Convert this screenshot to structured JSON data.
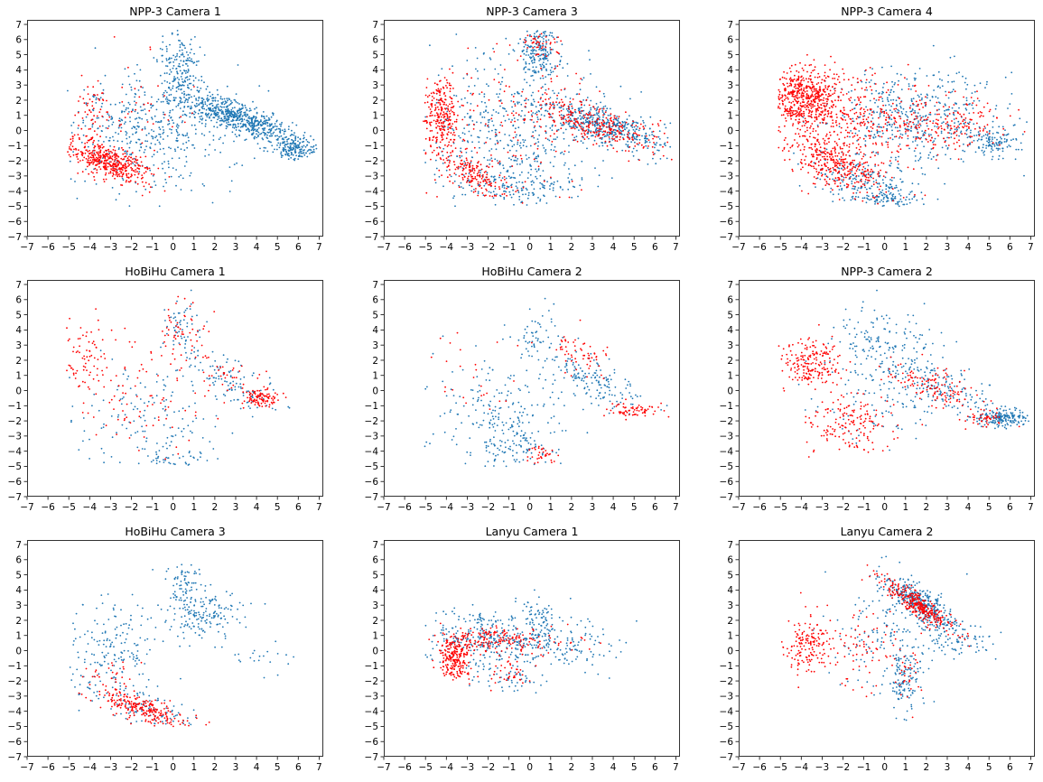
{
  "chart_data": [
    {
      "type": "scatter",
      "title": "NPP-3 Camera 1",
      "xlim": [
        -7,
        7.2
      ],
      "ylim": [
        -7,
        7.3
      ],
      "series": [
        {
          "color": "#1f77b4",
          "clusters": [
            {
              "cx": 3.2,
              "cy": 0.8,
              "sx": 1.6,
              "sy": 0.45,
              "rot": -27,
              "n": 650
            },
            {
              "cx": 5.8,
              "cy": -1.2,
              "sx": 0.55,
              "sy": 0.3,
              "rot": 0,
              "n": 160
            },
            {
              "cx": 0.3,
              "cy": 4.2,
              "sx": 0.45,
              "sy": 1.2,
              "rot": 0,
              "n": 170
            },
            {
              "cx": -2.0,
              "cy": -0.3,
              "sx": 1.8,
              "sy": 2.0,
              "rot": 0,
              "n": 340
            },
            {
              "cx": 0.5,
              "cy": 0.5,
              "sx": 1.3,
              "sy": 1.8,
              "rot": 0,
              "n": 160
            }
          ]
        },
        {
          "color": "#ff0000",
          "clusters": [
            {
              "cx": -3.0,
              "cy": -2.1,
              "sx": 1.1,
              "sy": 0.5,
              "rot": -28,
              "n": 420
            },
            {
              "cx": -4.0,
              "cy": 0.3,
              "sx": 0.5,
              "sy": 1.3,
              "rot": 0,
              "n": 70
            },
            {
              "cx": -2.0,
              "cy": 1.2,
              "sx": 1.5,
              "sy": 1.8,
              "rot": 0,
              "n": 50
            }
          ]
        }
      ]
    },
    {
      "type": "scatter",
      "title": "NPP-3 Camera 3",
      "xlim": [
        -7,
        7.2
      ],
      "ylim": [
        -7,
        7.3
      ],
      "series": [
        {
          "color": "#1f77b4",
          "clusters": [
            {
              "cx": 3.5,
              "cy": 0.3,
              "sx": 1.6,
              "sy": 0.6,
              "rot": -25,
              "n": 450
            },
            {
              "cx": 0.4,
              "cy": 5.2,
              "sx": 0.5,
              "sy": 0.8,
              "rot": 0,
              "n": 200
            },
            {
              "cx": -1.0,
              "cy": 0.0,
              "sx": 2.3,
              "sy": 2.4,
              "rot": 0,
              "n": 520
            },
            {
              "cx": -0.5,
              "cy": -3.7,
              "sx": 1.4,
              "sy": 0.5,
              "rot": 0,
              "n": 120
            }
          ]
        },
        {
          "color": "#ff0000",
          "clusters": [
            {
              "cx": -4.2,
              "cy": 1.0,
              "sx": 0.45,
              "sy": 1.2,
              "rot": 0,
              "n": 260
            },
            {
              "cx": -2.8,
              "cy": -2.8,
              "sx": 1.2,
              "sy": 0.45,
              "rot": -33,
              "n": 180
            },
            {
              "cx": 3.3,
              "cy": 0.3,
              "sx": 1.6,
              "sy": 0.6,
              "rot": -25,
              "n": 260
            },
            {
              "cx": 0.5,
              "cy": 5.5,
              "sx": 0.5,
              "sy": 0.6,
              "rot": 0,
              "n": 50
            },
            {
              "cx": -0.5,
              "cy": 0.5,
              "sx": 2.2,
              "sy": 2.4,
              "rot": 0,
              "n": 160
            }
          ]
        }
      ]
    },
    {
      "type": "scatter",
      "title": "NPP-3 Camera 4",
      "xlim": [
        -7,
        7.2
      ],
      "ylim": [
        -7,
        7.3
      ],
      "series": [
        {
          "color": "#1f77b4",
          "clusters": [
            {
              "cx": 1.5,
              "cy": 0.8,
              "sx": 2.2,
              "sy": 1.6,
              "rot": 0,
              "n": 480
            },
            {
              "cx": 5.3,
              "cy": -0.9,
              "sx": 0.6,
              "sy": 0.5,
              "rot": 0,
              "n": 110
            },
            {
              "cx": -0.8,
              "cy": -3.5,
              "sx": 1.4,
              "sy": 0.8,
              "rot": -20,
              "n": 200
            },
            {
              "cx": 0.2,
              "cy": -4.6,
              "sx": 0.6,
              "sy": 0.3,
              "rot": 0,
              "n": 80
            }
          ]
        },
        {
          "color": "#ff0000",
          "clusters": [
            {
              "cx": -3.8,
              "cy": 2.2,
              "sx": 0.8,
              "sy": 1.0,
              "rot": 0,
              "n": 500
            },
            {
              "cx": -2.3,
              "cy": -2.2,
              "sx": 1.4,
              "sy": 0.7,
              "rot": -35,
              "n": 360
            },
            {
              "cx": -1.5,
              "cy": 1.0,
              "sx": 1.8,
              "sy": 1.5,
              "rot": 0,
              "n": 320
            },
            {
              "cx": 2.8,
              "cy": 0.2,
              "sx": 1.5,
              "sy": 1.0,
              "rot": 0,
              "n": 200
            }
          ]
        }
      ]
    },
    {
      "type": "scatter",
      "title": "HoBiHu Camera 1",
      "xlim": [
        -7,
        7.2
      ],
      "ylim": [
        -7,
        7.3
      ],
      "series": [
        {
          "color": "#1f77b4",
          "clusters": [
            {
              "cx": 2.8,
              "cy": 0.5,
              "sx": 1.5,
              "sy": 0.6,
              "rot": -40,
              "n": 110
            },
            {
              "cx": 0.4,
              "cy": 4.2,
              "sx": 0.5,
              "sy": 1.0,
              "rot": 0,
              "n": 60
            },
            {
              "cx": -1.0,
              "cy": -1.5,
              "sx": 1.8,
              "sy": 2.0,
              "rot": 0,
              "n": 140
            },
            {
              "cx": 0.0,
              "cy": -4.4,
              "sx": 0.9,
              "sy": 0.3,
              "rot": 0,
              "n": 40
            }
          ]
        },
        {
          "color": "#ff0000",
          "clusters": [
            {
              "cx": 4.3,
              "cy": -0.5,
              "sx": 0.4,
              "sy": 0.3,
              "rot": 0,
              "n": 90
            },
            {
              "cx": -4.3,
              "cy": 2.2,
              "sx": 0.6,
              "sy": 1.4,
              "rot": 0,
              "n": 80
            },
            {
              "cx": 0.5,
              "cy": 3.8,
              "sx": 0.6,
              "sy": 1.0,
              "rot": 0,
              "n": 50
            },
            {
              "cx": -1.5,
              "cy": 0.0,
              "sx": 1.8,
              "sy": 2.2,
              "rot": 0,
              "n": 90
            },
            {
              "cx": 3.0,
              "cy": 0.8,
              "sx": 1.0,
              "sy": 0.5,
              "rot": -40,
              "n": 40
            }
          ]
        }
      ]
    },
    {
      "type": "scatter",
      "title": "HoBiHu Camera 2",
      "xlim": [
        -7,
        7.2
      ],
      "ylim": [
        -7,
        7.3
      ],
      "series": [
        {
          "color": "#1f77b4",
          "clusters": [
            {
              "cx": 3.0,
              "cy": 0.6,
              "sx": 1.6,
              "sy": 0.6,
              "rot": -38,
              "n": 160
            },
            {
              "cx": 0.5,
              "cy": 3.8,
              "sx": 0.6,
              "sy": 1.0,
              "rot": 0,
              "n": 50
            },
            {
              "cx": -1.5,
              "cy": -1.8,
              "sx": 1.6,
              "sy": 1.8,
              "rot": 0,
              "n": 220
            },
            {
              "cx": -0.5,
              "cy": -3.8,
              "sx": 1.0,
              "sy": 0.5,
              "rot": 0,
              "n": 60
            }
          ]
        },
        {
          "color": "#ff0000",
          "clusters": [
            {
              "cx": 5.0,
              "cy": -1.3,
              "sx": 0.6,
              "sy": 0.25,
              "rot": 0,
              "n": 70
            },
            {
              "cx": 2.3,
              "cy": 2.5,
              "sx": 0.8,
              "sy": 0.6,
              "rot": -45,
              "n": 60
            },
            {
              "cx": 0.5,
              "cy": -4.3,
              "sx": 0.5,
              "sy": 0.3,
              "rot": 0,
              "n": 35
            },
            {
              "cx": -3.0,
              "cy": 0.5,
              "sx": 1.2,
              "sy": 1.5,
              "rot": 0,
              "n": 25
            }
          ]
        }
      ]
    },
    {
      "type": "scatter",
      "title": "NPP-3 Camera 2",
      "xlim": [
        -7,
        7.2
      ],
      "ylim": [
        -7,
        7.3
      ],
      "series": [
        {
          "color": "#1f77b4",
          "clusters": [
            {
              "cx": 5.6,
              "cy": -1.8,
              "sx": 0.6,
              "sy": 0.3,
              "rot": 0,
              "n": 170
            },
            {
              "cx": 3.0,
              "cy": 0.0,
              "sx": 1.5,
              "sy": 0.6,
              "rot": -30,
              "n": 140
            },
            {
              "cx": 0.0,
              "cy": 3.0,
              "sx": 1.3,
              "sy": 1.3,
              "rot": 0,
              "n": 150
            },
            {
              "cx": 0.0,
              "cy": 0.0,
              "sx": 1.8,
              "sy": 1.6,
              "rot": 0,
              "n": 120
            }
          ]
        },
        {
          "color": "#ff0000",
          "clusters": [
            {
              "cx": -3.5,
              "cy": 1.8,
              "sx": 0.7,
              "sy": 0.8,
              "rot": 0,
              "n": 200
            },
            {
              "cx": -1.5,
              "cy": -2.2,
              "sx": 1.0,
              "sy": 1.0,
              "rot": 0,
              "n": 160
            },
            {
              "cx": 2.5,
              "cy": 0.2,
              "sx": 1.4,
              "sy": 0.5,
              "rot": -30,
              "n": 130
            },
            {
              "cx": 4.8,
              "cy": -1.9,
              "sx": 0.5,
              "sy": 0.2,
              "rot": 0,
              "n": 40
            }
          ]
        }
      ]
    },
    {
      "type": "scatter",
      "title": "HoBiHu Camera 3",
      "xlim": [
        -7,
        7.2
      ],
      "ylim": [
        -7,
        7.3
      ],
      "series": [
        {
          "color": "#1f77b4",
          "clusters": [
            {
              "cx": 1.3,
              "cy": 2.5,
              "sx": 1.0,
              "sy": 1.0,
              "rot": -30,
              "n": 180
            },
            {
              "cx": 0.4,
              "cy": 4.5,
              "sx": 0.4,
              "sy": 0.6,
              "rot": 0,
              "n": 60
            },
            {
              "cx": -3.0,
              "cy": 0.0,
              "sx": 1.2,
              "sy": 1.7,
              "rot": 0,
              "n": 180
            },
            {
              "cx": -1.5,
              "cy": -3.7,
              "sx": 1.5,
              "sy": 0.5,
              "rot": -25,
              "n": 100
            },
            {
              "cx": 4.5,
              "cy": -0.5,
              "sx": 1.0,
              "sy": 0.5,
              "rot": 0,
              "n": 20
            }
          ]
        },
        {
          "color": "#ff0000",
          "clusters": [
            {
              "cx": -1.5,
              "cy": -3.8,
              "sx": 1.3,
              "sy": 0.4,
              "rot": -28,
              "n": 230
            },
            {
              "cx": -3.0,
              "cy": -1.5,
              "sx": 0.6,
              "sy": 0.6,
              "rot": 0,
              "n": 30
            }
          ]
        }
      ]
    },
    {
      "type": "scatter",
      "title": "Lanyu Camera 1",
      "xlim": [
        -7,
        7.2
      ],
      "ylim": [
        -7,
        7.3
      ],
      "series": [
        {
          "color": "#1f77b4",
          "clusters": [
            {
              "cx": -1.5,
              "cy": 0.8,
              "sx": 1.8,
              "sy": 0.9,
              "rot": 0,
              "n": 380
            },
            {
              "cx": 2.0,
              "cy": 0.3,
              "sx": 1.2,
              "sy": 0.8,
              "rot": 0,
              "n": 80
            },
            {
              "cx": -1.0,
              "cy": -1.8,
              "sx": 0.8,
              "sy": 0.6,
              "rot": 0,
              "n": 50
            },
            {
              "cx": 0.5,
              "cy": 2.5,
              "sx": 0.6,
              "sy": 0.6,
              "rot": 0,
              "n": 40
            }
          ]
        },
        {
          "color": "#ff0000",
          "clusters": [
            {
              "cx": -3.6,
              "cy": -0.5,
              "sx": 0.35,
              "sy": 0.7,
              "rot": 0,
              "n": 220
            },
            {
              "cx": -2.0,
              "cy": 0.8,
              "sx": 1.0,
              "sy": 0.4,
              "rot": 0,
              "n": 150
            },
            {
              "cx": -1.0,
              "cy": -1.5,
              "sx": 0.7,
              "sy": 0.5,
              "rot": 0,
              "n": 40
            },
            {
              "cx": 0.5,
              "cy": 0.5,
              "sx": 1.0,
              "sy": 0.5,
              "rot": 0,
              "n": 40
            }
          ]
        }
      ]
    },
    {
      "type": "scatter",
      "title": "Lanyu Camera 2",
      "xlim": [
        -7,
        7.2
      ],
      "ylim": [
        -7,
        7.3
      ],
      "series": [
        {
          "color": "#1f77b4",
          "clusters": [
            {
              "cx": 1.8,
              "cy": 3.0,
              "sx": 1.3,
              "sy": 0.4,
              "rot": -45,
              "n": 380
            },
            {
              "cx": 1.0,
              "cy": -1.8,
              "sx": 0.4,
              "sy": 1.0,
              "rot": 0,
              "n": 120
            },
            {
              "cx": 0.5,
              "cy": 1.0,
              "sx": 1.5,
              "sy": 2.0,
              "rot": 0,
              "n": 150
            },
            {
              "cx": 3.5,
              "cy": 0.5,
              "sx": 1.0,
              "sy": 0.6,
              "rot": 0,
              "n": 60
            }
          ]
        },
        {
          "color": "#ff0000",
          "clusters": [
            {
              "cx": 1.6,
              "cy": 3.0,
              "sx": 1.2,
              "sy": 0.3,
              "rot": -45,
              "n": 300
            },
            {
              "cx": -3.7,
              "cy": 0.5,
              "sx": 0.6,
              "sy": 0.9,
              "rot": 0,
              "n": 150
            },
            {
              "cx": -1.5,
              "cy": 0.5,
              "sx": 1.2,
              "sy": 1.3,
              "rot": 0,
              "n": 80
            },
            {
              "cx": 1.0,
              "cy": -1.5,
              "sx": 0.4,
              "sy": 0.8,
              "rot": 0,
              "n": 30
            }
          ]
        }
      ]
    }
  ]
}
